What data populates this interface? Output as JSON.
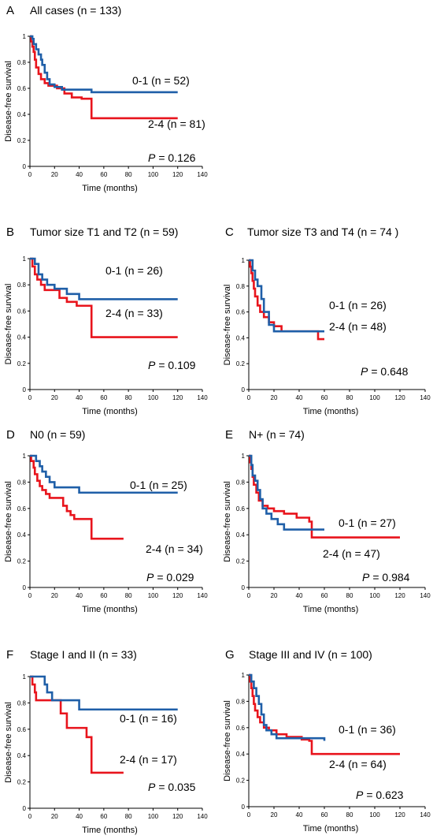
{
  "chart_data": [
    {
      "panel": "A",
      "title": "All cases (n = 133)",
      "type": "line",
      "xlabel": "Time (months)",
      "ylabel": "Disease-free survival",
      "xlim": [
        0,
        140
      ],
      "ylim": [
        0,
        1
      ],
      "xticks": [
        0,
        20,
        40,
        60,
        80,
        100,
        120,
        140
      ],
      "yticks": [
        0,
        0.2,
        0.4,
        0.6,
        0.8,
        1
      ],
      "pvalue_label": "P",
      "pvalue": "= 0.126",
      "series": [
        {
          "name": "0-1 (n = 52)",
          "color": "#1f5fa8",
          "points": [
            [
              0,
              1
            ],
            [
              2,
              0.98
            ],
            [
              3,
              0.94
            ],
            [
              5,
              0.9
            ],
            [
              7,
              0.86
            ],
            [
              9,
              0.82
            ],
            [
              10,
              0.78
            ],
            [
              12,
              0.72
            ],
            [
              14,
              0.67
            ],
            [
              16,
              0.63
            ],
            [
              20,
              0.61
            ],
            [
              26,
              0.59
            ],
            [
              50,
              0.57
            ],
            [
              120,
              0.57
            ]
          ]
        },
        {
          "name": "2-4 (n = 81)",
          "color": "#e8141c",
          "points": [
            [
              0,
              1
            ],
            [
              1,
              0.96
            ],
            [
              2,
              0.92
            ],
            [
              3,
              0.88
            ],
            [
              4,
              0.82
            ],
            [
              5,
              0.76
            ],
            [
              7,
              0.71
            ],
            [
              9,
              0.67
            ],
            [
              12,
              0.64
            ],
            [
              15,
              0.62
            ],
            [
              22,
              0.6
            ],
            [
              28,
              0.56
            ],
            [
              34,
              0.53
            ],
            [
              42,
              0.52
            ],
            [
              50,
              0.37
            ],
            [
              120,
              0.37
            ]
          ]
        }
      ]
    },
    {
      "panel": "B",
      "title": "Tumor size T1 and T2 (n = 59)",
      "type": "line",
      "xlabel": "Time (months)",
      "ylabel": "Disease-free survival",
      "xlim": [
        0,
        140
      ],
      "ylim": [
        0,
        1
      ],
      "xticks": [
        0,
        20,
        40,
        60,
        80,
        100,
        120,
        140
      ],
      "yticks": [
        0,
        0.2,
        0.4,
        0.6,
        0.8,
        1
      ],
      "pvalue_label": "P",
      "pvalue": "= 0.109",
      "series": [
        {
          "name": "0-1 (n = 26)",
          "color": "#1f5fa8",
          "points": [
            [
              0,
              1
            ],
            [
              4,
              0.96
            ],
            [
              7,
              0.88
            ],
            [
              10,
              0.84
            ],
            [
              14,
              0.8
            ],
            [
              20,
              0.77
            ],
            [
              30,
              0.73
            ],
            [
              40,
              0.69
            ],
            [
              120,
              0.69
            ]
          ]
        },
        {
          "name": "2-4 (n = 33)",
          "color": "#e8141c",
          "points": [
            [
              0,
              1
            ],
            [
              2,
              0.94
            ],
            [
              4,
              0.88
            ],
            [
              6,
              0.84
            ],
            [
              9,
              0.8
            ],
            [
              12,
              0.76
            ],
            [
              20,
              0.76
            ],
            [
              24,
              0.7
            ],
            [
              30,
              0.67
            ],
            [
              38,
              0.64
            ],
            [
              50,
              0.6
            ],
            [
              50,
              0.4
            ],
            [
              120,
              0.4
            ]
          ]
        }
      ]
    },
    {
      "panel": "C",
      "title": "Tumor size T3 and T4 (n = 74 )",
      "type": "line",
      "xlabel": "Time (months)",
      "ylabel": "Disease-free survival",
      "xlim": [
        0,
        140
      ],
      "ylim": [
        0,
        1
      ],
      "xticks": [
        0,
        20,
        40,
        60,
        80,
        100,
        120,
        140
      ],
      "yticks": [
        0,
        0.2,
        0.4,
        0.6,
        0.8,
        1
      ],
      "pvalue_label": "P",
      "pvalue": "= 0.648",
      "series": [
        {
          "name": "0-1 (n = 26)",
          "color": "#1f5fa8",
          "points": [
            [
              0,
              1
            ],
            [
              3,
              0.92
            ],
            [
              5,
              0.85
            ],
            [
              7,
              0.8
            ],
            [
              10,
              0.7
            ],
            [
              12,
              0.6
            ],
            [
              16,
              0.5
            ],
            [
              20,
              0.45
            ],
            [
              60,
              0.45
            ]
          ]
        },
        {
          "name": "2-4 (n = 48)",
          "color": "#e8141c",
          "points": [
            [
              0,
              1
            ],
            [
              1,
              0.95
            ],
            [
              2,
              0.9
            ],
            [
              3,
              0.84
            ],
            [
              4,
              0.78
            ],
            [
              5,
              0.72
            ],
            [
              7,
              0.65
            ],
            [
              9,
              0.6
            ],
            [
              12,
              0.56
            ],
            [
              16,
              0.52
            ],
            [
              20,
              0.49
            ],
            [
              26,
              0.45
            ],
            [
              55,
              0.45
            ],
            [
              55,
              0.39
            ],
            [
              60,
              0.39
            ]
          ]
        }
      ]
    },
    {
      "panel": "D",
      "title": "N0  (n = 59)",
      "type": "line",
      "xlabel": "Time (months)",
      "ylabel": "Disease-free survival",
      "xlim": [
        0,
        140
      ],
      "ylim": [
        0,
        1
      ],
      "xticks": [
        0,
        20,
        40,
        60,
        80,
        100,
        120,
        140
      ],
      "yticks": [
        0,
        0.2,
        0.4,
        0.6,
        0.8,
        1
      ],
      "pvalue_label": "P",
      "pvalue": "= 0.029",
      "series": [
        {
          "name": "0-1 (n = 25)",
          "color": "#1f5fa8",
          "points": [
            [
              0,
              1
            ],
            [
              5,
              0.96
            ],
            [
              8,
              0.92
            ],
            [
              10,
              0.88
            ],
            [
              13,
              0.84
            ],
            [
              16,
              0.8
            ],
            [
              20,
              0.76
            ],
            [
              40,
              0.76
            ],
            [
              40,
              0.72
            ],
            [
              120,
              0.72
            ]
          ]
        },
        {
          "name": "2-4 (n = 34)",
          "color": "#e8141c",
          "points": [
            [
              0,
              1
            ],
            [
              1,
              0.96
            ],
            [
              3,
              0.91
            ],
            [
              4,
              0.86
            ],
            [
              6,
              0.81
            ],
            [
              8,
              0.77
            ],
            [
              10,
              0.74
            ],
            [
              13,
              0.71
            ],
            [
              16,
              0.68
            ],
            [
              24,
              0.68
            ],
            [
              27,
              0.62
            ],
            [
              30,
              0.58
            ],
            [
              33,
              0.55
            ],
            [
              36,
              0.52
            ],
            [
              50,
              0.52
            ],
            [
              50,
              0.37
            ],
            [
              76,
              0.37
            ]
          ]
        }
      ]
    },
    {
      "panel": "E",
      "title": "N+  (n = 74)",
      "type": "line",
      "xlabel": "Time (months)",
      "ylabel": "Disease-free survival",
      "xlim": [
        0,
        140
      ],
      "ylim": [
        0,
        1
      ],
      "xticks": [
        0,
        20,
        40,
        60,
        80,
        100,
        120,
        140
      ],
      "yticks": [
        0,
        0.2,
        0.4,
        0.6,
        0.8,
        1
      ],
      "pvalue_label": "P",
      "pvalue": "= 0.984",
      "series": [
        {
          "name": "0-1 (n = 27)",
          "color": "#1f5fa8",
          "points": [
            [
              0,
              1
            ],
            [
              2,
              0.93
            ],
            [
              3,
              0.85
            ],
            [
              5,
              0.81
            ],
            [
              7,
              0.74
            ],
            [
              9,
              0.67
            ],
            [
              11,
              0.6
            ],
            [
              14,
              0.56
            ],
            [
              18,
              0.52
            ],
            [
              23,
              0.48
            ],
            [
              28,
              0.44
            ],
            [
              60,
              0.44
            ]
          ]
        },
        {
          "name": "2-4 (n = 47)",
          "color": "#e8141c",
          "points": [
            [
              0,
              1
            ],
            [
              1,
              0.95
            ],
            [
              2,
              0.9
            ],
            [
              3,
              0.84
            ],
            [
              4,
              0.78
            ],
            [
              6,
              0.72
            ],
            [
              8,
              0.66
            ],
            [
              11,
              0.62
            ],
            [
              15,
              0.6
            ],
            [
              20,
              0.58
            ],
            [
              28,
              0.56
            ],
            [
              38,
              0.53
            ],
            [
              48,
              0.5
            ],
            [
              50,
              0.38
            ],
            [
              120,
              0.38
            ]
          ]
        }
      ]
    },
    {
      "panel": "F",
      "title": "Stage I and II (n = 33)",
      "type": "line",
      "xlabel": "Time (months)",
      "ylabel": "Disease-free survival",
      "xlim": [
        0,
        140
      ],
      "ylim": [
        0,
        1
      ],
      "xticks": [
        0,
        20,
        40,
        60,
        80,
        100,
        120,
        140
      ],
      "yticks": [
        0,
        0.2,
        0.4,
        0.6,
        0.8,
        1
      ],
      "pvalue_label": "P",
      "pvalue": "= 0.035",
      "series": [
        {
          "name": "0-1 (n = 16)",
          "color": "#1f5fa8",
          "points": [
            [
              0,
              1
            ],
            [
              10,
              1
            ],
            [
              12,
              0.94
            ],
            [
              14,
              0.88
            ],
            [
              18,
              0.82
            ],
            [
              40,
              0.82
            ],
            [
              40,
              0.75
            ],
            [
              120,
              0.75
            ]
          ]
        },
        {
          "name": "2-4 (n = 17)",
          "color": "#e8141c",
          "points": [
            [
              0,
              1
            ],
            [
              2,
              0.94
            ],
            [
              4,
              0.88
            ],
            [
              5,
              0.82
            ],
            [
              22,
              0.82
            ],
            [
              25,
              0.72
            ],
            [
              30,
              0.61
            ],
            [
              44,
              0.61
            ],
            [
              46,
              0.54
            ],
            [
              48,
              0.54
            ],
            [
              50,
              0.27
            ],
            [
              76,
              0.27
            ]
          ]
        }
      ]
    },
    {
      "panel": "G",
      "title": "Stage III and IV (n = 100)",
      "type": "line",
      "xlabel": "Time (months)",
      "ylabel": "Disease-free survival",
      "xlim": [
        0,
        140
      ],
      "ylim": [
        0,
        1
      ],
      "xticks": [
        0,
        20,
        40,
        60,
        80,
        100,
        120,
        140
      ],
      "yticks": [
        0,
        0.2,
        0.4,
        0.6,
        0.8,
        1
      ],
      "pvalue_label": "P",
      "pvalue": "= 0.623",
      "series": [
        {
          "name": "0-1 (n = 36)",
          "color": "#1f5fa8",
          "points": [
            [
              0,
              1
            ],
            [
              2,
              0.95
            ],
            [
              4,
              0.9
            ],
            [
              6,
              0.84
            ],
            [
              8,
              0.78
            ],
            [
              10,
              0.7
            ],
            [
              12,
              0.62
            ],
            [
              14,
              0.58
            ],
            [
              18,
              0.55
            ],
            [
              22,
              0.52
            ],
            [
              60,
              0.5
            ]
          ]
        },
        {
          "name": "2-4 (n = 64)",
          "color": "#e8141c",
          "points": [
            [
              0,
              1
            ],
            [
              1,
              0.95
            ],
            [
              2,
              0.9
            ],
            [
              3,
              0.84
            ],
            [
              4,
              0.78
            ],
            [
              5,
              0.73
            ],
            [
              7,
              0.68
            ],
            [
              9,
              0.64
            ],
            [
              12,
              0.6
            ],
            [
              16,
              0.58
            ],
            [
              22,
              0.55
            ],
            [
              30,
              0.53
            ],
            [
              42,
              0.51
            ],
            [
              48,
              0.5
            ],
            [
              50,
              0.4
            ],
            [
              120,
              0.4
            ]
          ]
        }
      ]
    }
  ]
}
